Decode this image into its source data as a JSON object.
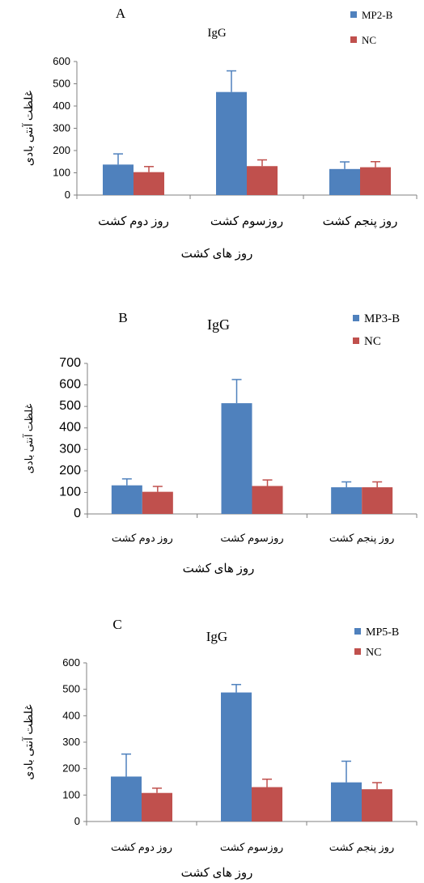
{
  "chart_data": [
    {
      "type": "bar",
      "panel_label": "A",
      "title": "IgG",
      "xlabel": "روز های کشت",
      "ylabel": "غلظت آنتی بادی",
      "categories": [
        "روز دوم کشت",
        "روزسوم کشت",
        "روز پنجم کشت"
      ],
      "series": [
        {
          "name": "MP2-B",
          "color": "#4f81bd",
          "values": [
            137,
            463,
            117
          ],
          "errors": [
            48,
            95,
            32
          ]
        },
        {
          "name": "NC",
          "color": "#c0504d",
          "values": [
            103,
            130,
            125
          ],
          "errors": [
            25,
            28,
            25
          ]
        }
      ],
      "ylim": [
        0,
        600
      ],
      "yticks": [
        0,
        100,
        200,
        300,
        400,
        500,
        600
      ],
      "legend": "top-right"
    },
    {
      "type": "bar",
      "panel_label": "B",
      "title": "IgG",
      "xlabel": "روز های کشت",
      "ylabel": "غلظت آنتی بادی",
      "categories": [
        "روز دوم کشت",
        "روزسوم کشت",
        "روز پنجم کشت"
      ],
      "series": [
        {
          "name": "MP3-B",
          "color": "#4f81bd",
          "values": [
            133,
            515,
            124
          ],
          "errors": [
            30,
            110,
            25
          ]
        },
        {
          "name": "NC",
          "color": "#c0504d",
          "values": [
            103,
            130,
            124
          ],
          "errors": [
            25,
            28,
            25
          ]
        }
      ],
      "ylim": [
        0,
        700
      ],
      "yticks": [
        0,
        100,
        200,
        300,
        400,
        500,
        600,
        700
      ],
      "legend": "top-right"
    },
    {
      "type": "bar",
      "panel_label": "C",
      "title": "IgG",
      "xlabel": "روز های کشت",
      "ylabel": "غلظت آنتی بادی",
      "categories": [
        "روز دوم کشت",
        "روزسوم کشت",
        "روز پنجم کشت"
      ],
      "series": [
        {
          "name": "MP5-B",
          "color": "#4f81bd",
          "values": [
            170,
            488,
            148
          ],
          "errors": [
            85,
            30,
            80
          ]
        },
        {
          "name": "NC",
          "color": "#c0504d",
          "values": [
            108,
            130,
            122
          ],
          "errors": [
            18,
            30,
            25
          ]
        }
      ],
      "ylim": [
        0,
        600
      ],
      "yticks": [
        0,
        100,
        200,
        300,
        400,
        500,
        600
      ],
      "legend": "top-right"
    }
  ]
}
